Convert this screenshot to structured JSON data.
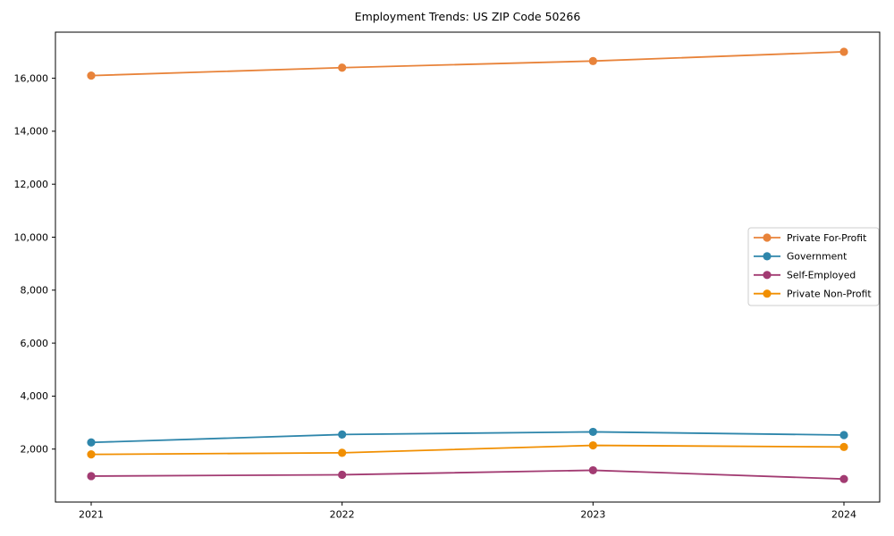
{
  "chart_data": {
    "type": "line",
    "title": "Employment Trends: US ZIP Code 50266",
    "xlabel": "",
    "ylabel": "",
    "categories": [
      "2021",
      "2022",
      "2023",
      "2024"
    ],
    "series": [
      {
        "name": "Private For-Profit",
        "color": "#E8833A",
        "values": [
          16100,
          16400,
          16650,
          17000
        ]
      },
      {
        "name": "Government",
        "color": "#2E86AB",
        "values": [
          2250,
          2550,
          2650,
          2530
        ]
      },
      {
        "name": "Self-Employed",
        "color": "#A23B72",
        "values": [
          980,
          1030,
          1200,
          870
        ]
      },
      {
        "name": "Private Non-Profit",
        "color": "#F18F01",
        "values": [
          1800,
          1860,
          2140,
          2080
        ]
      }
    ],
    "yticks": [
      2000,
      4000,
      6000,
      8000,
      10000,
      12000,
      14000,
      16000
    ],
    "ytick_labels": [
      "2,000",
      "4,000",
      "6,000",
      "8,000",
      "10,000",
      "12,000",
      "14,000",
      "16,000"
    ],
    "ylim": [
      0,
      17740
    ],
    "grid": false,
    "legend_position": "center right",
    "marker": "circle",
    "axis_color": "#000000",
    "legend_border_color": "#cccccc"
  }
}
